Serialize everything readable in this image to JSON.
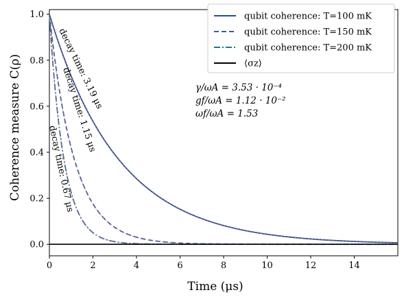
{
  "chart_data": {
    "type": "line",
    "xlabel": "Time (μs)",
    "ylabel": "Coherence measure C(ρ)",
    "xlim": [
      0,
      16
    ],
    "ylim": [
      -0.05,
      1.02
    ],
    "x_ticks": [
      "0",
      "2",
      "4",
      "6",
      "8",
      "10",
      "12",
      "14"
    ],
    "y_ticks": [
      "0.0",
      "0.2",
      "0.4",
      "0.6",
      "0.8",
      "1.0"
    ],
    "x_tick_values": [
      0,
      2,
      4,
      6,
      8,
      10,
      12,
      14
    ],
    "y_tick_values": [
      0.0,
      0.2,
      0.4,
      0.6,
      0.8,
      1.0
    ],
    "legend_placement": "top-right",
    "grid": false,
    "series": [
      {
        "name": "qubit coherence: T=100 mK",
        "style": "solid",
        "color": "#1f4e96",
        "decay_time": 3.19
      },
      {
        "name": "qubit coherence: T=150 mK",
        "style": "dashed",
        "color": "#2f5fa8",
        "decay_time": 1.15
      },
      {
        "name": "qubit coherence: T=200 mK",
        "style": "dashdot",
        "color": "#2a6f9a",
        "decay_time": 0.67
      },
      {
        "name": "⟨σz⟩",
        "style": "solid",
        "color": "#000000",
        "constant": 0.0
      }
    ],
    "fit_overlay_color": "#e0607a",
    "decay_labels": [
      {
        "text": "decay time: 3.19 μs",
        "series": 0
      },
      {
        "text": "decay time: 1.15 μs",
        "series": 1
      },
      {
        "text": "decay time: 0.67 μs",
        "series": 2
      }
    ],
    "annotations": [
      "γ/ωA = 3.53 · 10⁻⁴",
      "gf/ωA = 1.12 · 10⁻²",
      "ωf/ωA = 1.53"
    ]
  }
}
